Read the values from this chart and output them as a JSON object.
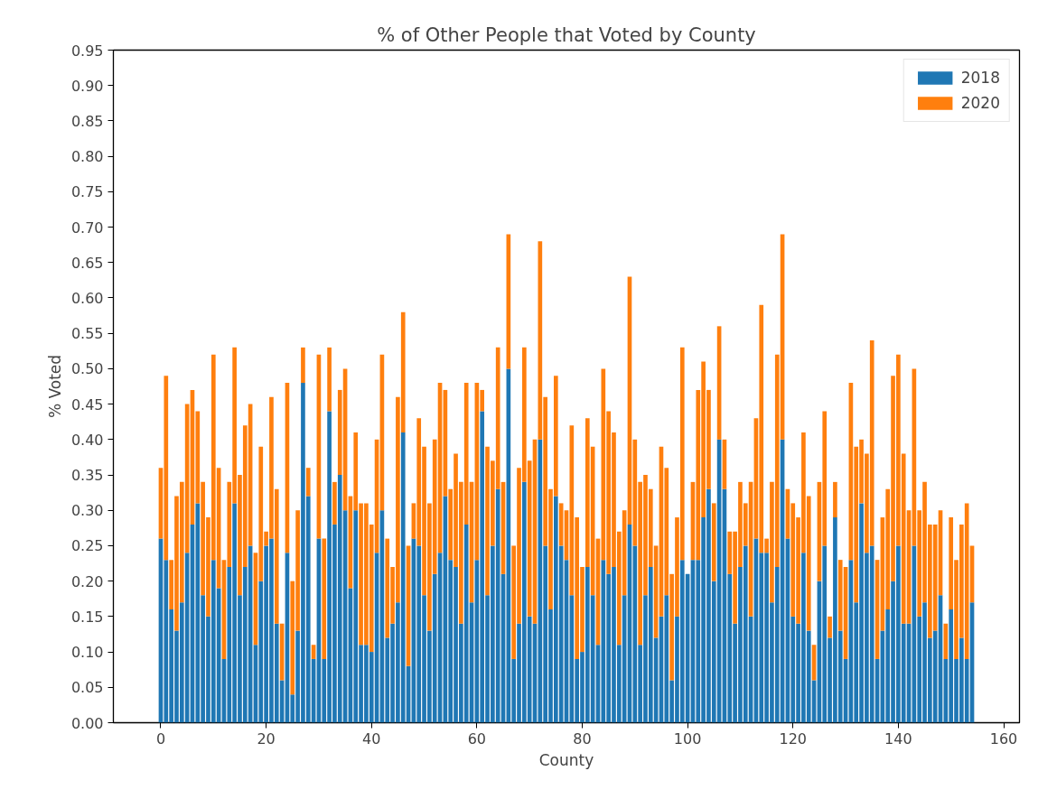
{
  "chart_data": {
    "type": "bar",
    "title": "% of Other People that Voted by County",
    "xlabel": "County",
    "ylabel": "% Voted",
    "x": [
      0,
      1,
      2,
      3,
      4,
      5,
      6,
      7,
      8,
      9,
      10,
      11,
      12,
      13,
      14,
      15,
      16,
      17,
      18,
      19,
      20,
      21,
      22,
      23,
      24,
      25,
      26,
      27,
      28,
      29,
      30,
      31,
      32,
      33,
      34,
      35,
      36,
      37,
      38,
      39,
      40,
      41,
      42,
      43,
      44,
      45,
      46,
      47,
      48,
      49,
      50,
      51,
      52,
      53,
      54,
      55,
      56,
      57,
      58,
      59,
      60,
      61,
      62,
      63,
      64,
      65,
      66,
      67,
      68,
      69,
      70,
      71,
      72,
      73,
      74,
      75,
      76,
      77,
      78,
      79,
      80,
      81,
      82,
      83,
      84,
      85,
      86,
      87,
      88,
      89,
      90,
      91,
      92,
      93,
      94,
      95,
      96,
      97,
      98,
      99,
      100,
      101,
      102,
      103,
      104,
      105,
      106,
      107,
      108,
      109,
      110,
      111,
      112,
      113,
      114,
      115,
      116,
      117,
      118,
      119,
      120,
      121,
      122,
      123,
      124,
      125,
      126,
      127,
      128,
      129,
      130,
      131,
      132,
      133,
      134,
      135,
      136,
      137,
      138,
      139,
      140,
      141,
      142,
      143,
      144,
      145,
      146,
      147,
      148,
      149,
      150,
      151,
      152,
      153,
      154
    ],
    "stacked": true,
    "series": [
      {
        "name": "2018",
        "color": "#1f77b4",
        "values": [
          0.26,
          0.23,
          0.16,
          0.13,
          0.17,
          0.24,
          0.28,
          0.31,
          0.18,
          0.15,
          0.23,
          0.19,
          0.09,
          0.22,
          0.31,
          0.18,
          0.22,
          0.25,
          0.11,
          0.2,
          0.25,
          0.26,
          0.14,
          0.06,
          0.24,
          0.04,
          0.13,
          0.48,
          0.32,
          0.09,
          0.26,
          0.09,
          0.44,
          0.28,
          0.35,
          0.3,
          0.19,
          0.3,
          0.11,
          0.11,
          0.1,
          0.24,
          0.3,
          0.12,
          0.14,
          0.17,
          0.41,
          0.08,
          0.26,
          0.25,
          0.18,
          0.13,
          0.21,
          0.24,
          0.32,
          0.23,
          0.22,
          0.14,
          0.28,
          0.17,
          0.23,
          0.44,
          0.18,
          0.25,
          0.33,
          0.21,
          0.5,
          0.09,
          0.14,
          0.34,
          0.15,
          0.14,
          0.4,
          0.25,
          0.16,
          0.32,
          0.25,
          0.23,
          0.18,
          0.09,
          0.1,
          0.22,
          0.18,
          0.11,
          0.23,
          0.21,
          0.22,
          0.11,
          0.18,
          0.28,
          0.25,
          0.11,
          0.18,
          0.22,
          0.12,
          0.15,
          0.18,
          0.06,
          0.15,
          0.23,
          0.21,
          0.23,
          0.23,
          0.29,
          0.33,
          0.2,
          0.4,
          0.33,
          0.21,
          0.14,
          0.22,
          0.25,
          0.15,
          0.26,
          0.24,
          0.24,
          0.17,
          0.22,
          0.4,
          0.26,
          0.15,
          0.14,
          0.24,
          0.13,
          0.06,
          0.2,
          0.25,
          0.12,
          0.29,
          0.13,
          0.09,
          0.23,
          0.17,
          0.31,
          0.24,
          0.25,
          0.09,
          0.13,
          0.16,
          0.2,
          0.25,
          0.14,
          0.14,
          0.25,
          0.15,
          0.17,
          0.12,
          0.13,
          0.18,
          0.09,
          0.16,
          0.09,
          0.12,
          0.09,
          0.17
        ]
      },
      {
        "name": "2020",
        "color": "#ff7f0e",
        "values": [
          0.1,
          0.26,
          0.07,
          0.19,
          0.17,
          0.21,
          0.19,
          0.13,
          0.16,
          0.14,
          0.29,
          0.17,
          0.14,
          0.12,
          0.22,
          0.17,
          0.2,
          0.2,
          0.13,
          0.19,
          0.02,
          0.2,
          0.19,
          0.08,
          0.24,
          0.16,
          0.17,
          0.05,
          0.04,
          0.02,
          0.26,
          0.17,
          0.09,
          0.06,
          0.12,
          0.2,
          0.13,
          0.11,
          0.2,
          0.2,
          0.18,
          0.16,
          0.22,
          0.14,
          0.08,
          0.29,
          0.17,
          0.17,
          0.05,
          0.18,
          0.21,
          0.18,
          0.19,
          0.24,
          0.15,
          0.1,
          0.16,
          0.2,
          0.2,
          0.17,
          0.25,
          0.03,
          0.21,
          0.12,
          0.2,
          0.13,
          0.19,
          0.16,
          0.22,
          0.19,
          0.22,
          0.26,
          0.28,
          0.21,
          0.17,
          0.17,
          0.06,
          0.07,
          0.24,
          0.2,
          0.12,
          0.21,
          0.21,
          0.15,
          0.27,
          0.23,
          0.19,
          0.16,
          0.12,
          0.35,
          0.15,
          0.23,
          0.17,
          0.11,
          0.13,
          0.24,
          0.18,
          0.15,
          0.14,
          0.3,
          0.0,
          0.11,
          0.24,
          0.22,
          0.14,
          0.11,
          0.16,
          0.07,
          0.06,
          0.13,
          0.12,
          0.06,
          0.19,
          0.17,
          0.35,
          0.02,
          0.17,
          0.3,
          0.29,
          0.07,
          0.16,
          0.15,
          0.17,
          0.19,
          0.05,
          0.14,
          0.19,
          0.03,
          0.05,
          0.1,
          0.13,
          0.25,
          0.22,
          0.09,
          0.14,
          0.29,
          0.14,
          0.16,
          0.17,
          0.29,
          0.27,
          0.24,
          0.16,
          0.25,
          0.15,
          0.17,
          0.16,
          0.15,
          0.12,
          0.05,
          0.13,
          0.14,
          0.16,
          0.22,
          0.08
        ]
      }
    ],
    "xlim": [
      -9,
      163
    ],
    "xticks": [
      0,
      20,
      40,
      60,
      80,
      100,
      120,
      140,
      160
    ],
    "ylim": [
      0,
      0.95
    ],
    "yticks": [
      {
        "value": 0,
        "label": "0.00"
      },
      {
        "value": 0.05,
        "label": "0.05"
      },
      {
        "value": 0.1,
        "label": "0.10"
      },
      {
        "value": 0.15,
        "label": "0.15"
      },
      {
        "value": 0.2,
        "label": "0.20"
      },
      {
        "value": 0.25,
        "label": "0.25"
      },
      {
        "value": 0.3,
        "label": "0.30"
      },
      {
        "value": 0.35,
        "label": "0.35"
      },
      {
        "value": 0.4,
        "label": "0.40"
      },
      {
        "value": 0.45,
        "label": "0.45"
      },
      {
        "value": 0.5,
        "label": "0.50"
      },
      {
        "value": 0.55,
        "label": "0.55"
      },
      {
        "value": 0.6,
        "label": "0.60"
      },
      {
        "value": 0.65,
        "label": "0.65"
      },
      {
        "value": 0.7,
        "label": "0.70"
      },
      {
        "value": 0.75,
        "label": "0.75"
      },
      {
        "value": 0.8,
        "label": "0.80"
      },
      {
        "value": 0.85,
        "label": "0.85"
      },
      {
        "value": 0.9,
        "label": "0.90"
      },
      {
        "value": 0.95,
        "label": "0.95"
      }
    ],
    "grid": false,
    "legend": "top right"
  }
}
